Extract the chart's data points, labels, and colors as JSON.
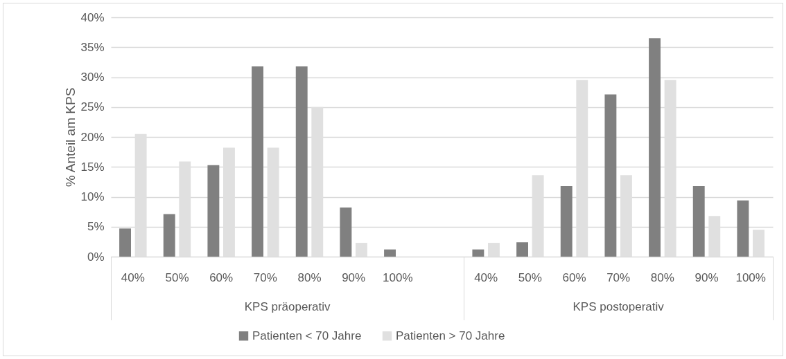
{
  "chart_data": {
    "type": "bar",
    "ylabel": "% Anteil am KPS",
    "categories": [
      "40%",
      "50%",
      "60%",
      "70%",
      "80%",
      "90%",
      "100%",
      null,
      "40%",
      "50%",
      "60%",
      "70%",
      "80%",
      "90%",
      "100%"
    ],
    "series": [
      {
        "name": "Patienten < 70 Jahre",
        "color": "#808080",
        "values": [
          4.7,
          7.1,
          15.3,
          31.8,
          31.8,
          8.2,
          1.2,
          null,
          1.2,
          2.4,
          11.8,
          27.1,
          36.5,
          11.8,
          9.4
        ]
      },
      {
        "name": "Patienten > 70 Jahre",
        "color": "#e0e0e0",
        "values": [
          20.5,
          15.9,
          18.2,
          18.2,
          25.0,
          2.3,
          0,
          null,
          2.3,
          13.6,
          29.5,
          13.6,
          29.5,
          6.8,
          4.5
        ]
      }
    ],
    "ylim": [
      0,
      40
    ],
    "yticks": [
      {
        "value": 0,
        "label": "0%"
      },
      {
        "value": 5,
        "label": "5%"
      },
      {
        "value": 10,
        "label": "10%"
      },
      {
        "value": 15,
        "label": "15%"
      },
      {
        "value": 20,
        "label": "20%"
      },
      {
        "value": 25,
        "label": "25%"
      },
      {
        "value": 30,
        "label": "30%"
      },
      {
        "value": 35,
        "label": "35%"
      },
      {
        "value": 40,
        "label": "40%"
      }
    ],
    "grid": "y",
    "legend": "bottom",
    "annotations": [
      "KPS präoperativ",
      "KPS postoperativ"
    ]
  }
}
